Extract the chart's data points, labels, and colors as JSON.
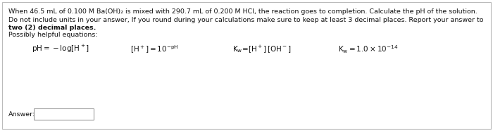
{
  "bg_color": "#ffffff",
  "border_color": "#bbbbbb",
  "text_color": "#111111",
  "line1": "When 46.5 mL of 0.100 M Ba(OH)₂ is mixed with 290.7 mL of 0.200 M HCl, the reaction goes to completion. Calculate the pH of the solution.",
  "line2": "Do not include units in your answer, If you round during your calculations make sure to keep at least 3 decimal places. Report your answer to",
  "line2_bold": "two (2) decimal places",
  "line3": "Possibly helpful equations:",
  "answer_label": "Answer:",
  "fig_width": 7.0,
  "fig_height": 1.86,
  "dpi": 100,
  "fs_text": 6.8,
  "fs_eq": 7.5
}
